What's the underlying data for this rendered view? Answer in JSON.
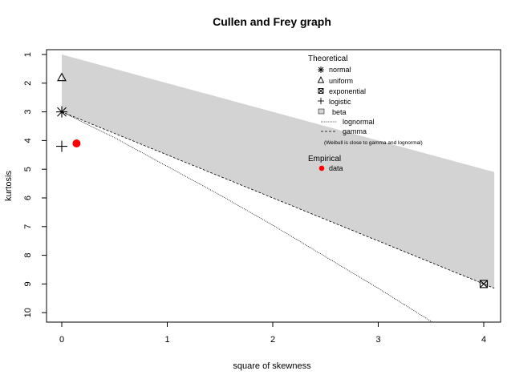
{
  "chart_data": {
    "type": "scatter",
    "title": "Cullen and Frey graph",
    "xlabel": "square of skewness",
    "ylabel": "kurtosis",
    "xlim": [
      0,
      4
    ],
    "ylim": [
      1,
      10
    ],
    "y_reversed": true,
    "x_ticks": [
      0,
      1,
      2,
      3,
      4
    ],
    "y_ticks": [
      1,
      2,
      3,
      4,
      5,
      6,
      7,
      8,
      9,
      10
    ],
    "beta_region": {
      "upper": [
        [
          0,
          1
        ],
        [
          4.1,
          5.1
        ]
      ],
      "lower": [
        [
          0,
          3
        ],
        [
          4.1,
          9.15
        ]
      ]
    },
    "theoretical_points": [
      {
        "name": "normal",
        "x": 0,
        "y": 3
      },
      {
        "name": "uniform",
        "x": 0,
        "y": 1.8
      },
      {
        "name": "exponential",
        "x": 4,
        "y": 9
      },
      {
        "name": "logistic",
        "x": 0,
        "y": 4.2
      }
    ],
    "gamma_line": [
      [
        0,
        3
      ],
      [
        4.1,
        9.15
      ]
    ],
    "lognormal_line": [
      [
        0,
        3
      ],
      [
        0.5,
        3.9
      ],
      [
        1,
        4.9
      ],
      [
        1.5,
        5.9
      ],
      [
        2,
        6.95
      ],
      [
        2.5,
        8.05
      ],
      [
        3,
        9.15
      ],
      [
        3.5,
        10.3
      ],
      [
        3.8,
        11
      ]
    ],
    "observation": {
      "name": "data",
      "x": 0.14,
      "y": 4.1
    },
    "legend": {
      "position": "top-right",
      "theoretical_title": "Theoretical",
      "theoretical_items": [
        "normal",
        "uniform",
        "exponential",
        "logistic",
        "beta",
        "lognormal",
        "gamma"
      ],
      "note": "(Weibull is close to gamma and lognormal)",
      "empirical_title": "Empirical",
      "empirical_items": [
        "data"
      ]
    },
    "colors": {
      "beta_fill": "#d3d3d3",
      "observation": "#ff0000",
      "lines": "#000000"
    }
  }
}
